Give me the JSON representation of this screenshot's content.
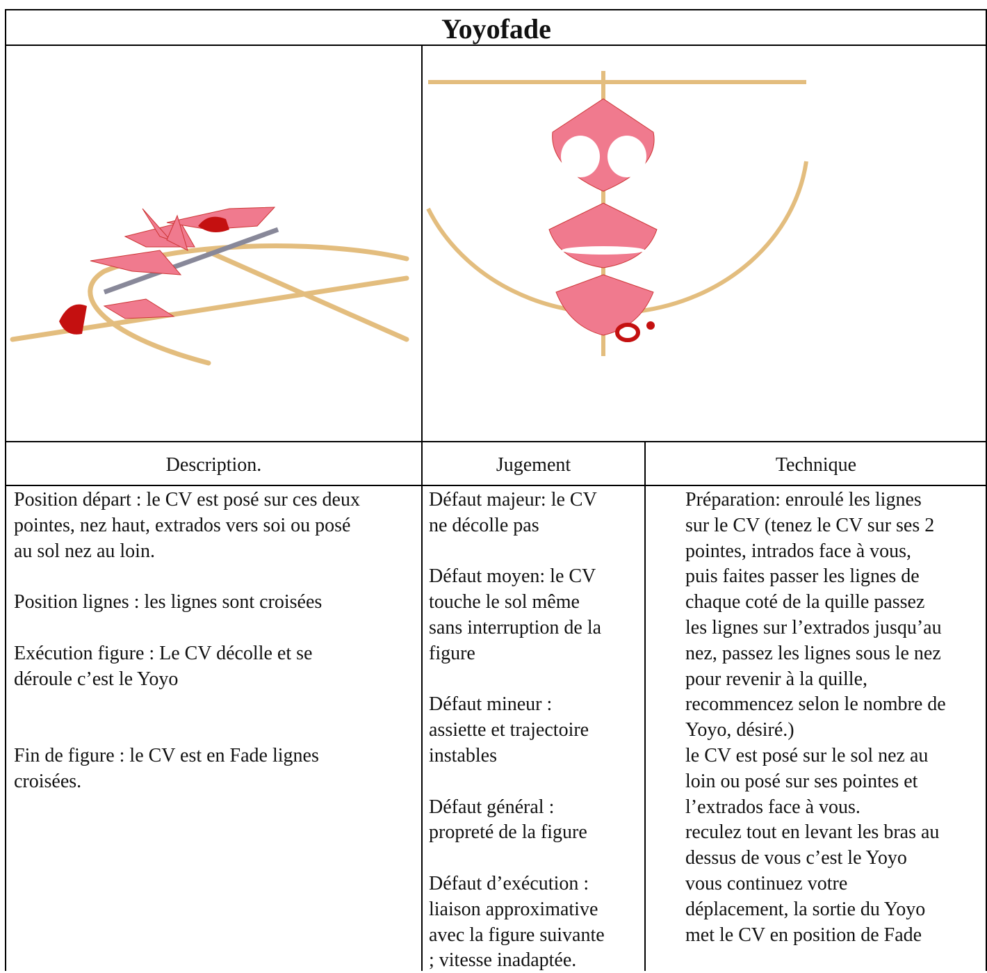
{
  "title": "Yoyofade",
  "headers": [
    "Description.",
    "Jugement",
    "Technique"
  ],
  "columns": [
    {
      "paragraphs": [
        [
          "Position départ : le CV est posé sur ces deux",
          "pointes, nez haut, extrados vers soi ou posé",
          "au sol nez au loin."
        ],
        [
          "Position lignes : les lignes sont croisées"
        ],
        [
          "Exécution figure : Le CV décolle et se",
          "déroule c’est le Yoyo"
        ],
        [
          "Fin de figure : le CV est en Fade lignes",
          "croisées."
        ]
      ]
    },
    {
      "paragraphs": [
        [
          "Défaut majeur: le CV",
          "ne décolle pas"
        ],
        [
          "Défaut moyen: le CV",
          "touche le sol même",
          "sans interruption de la",
          "figure"
        ],
        [
          "Défaut mineur :",
          "assiette et trajectoire",
          "instables"
        ],
        [
          "Défaut général :",
          "propreté de la figure"
        ],
        [
          "Défaut d’exécution :",
          "liaison approximative",
          "avec la figure suivante",
          "; vitesse inadaptée."
        ]
      ]
    },
    {
      "paragraphs": [
        [
          "Préparation: enroulé les lignes",
          "sur le CV (tenez le CV sur ses 2",
          "pointes, intrados face à vous,",
          "puis faites passer les lignes de",
          "chaque coté de la quille passez",
          "les lignes sur l’extrados jusqu’au",
          "nez, passez les lignes sous le nez",
          "pour revenir à la quille,",
          "recommencez selon le nombre de",
          "Yoyo, désiré.)",
          "le CV est posé sur le sol nez au",
          "loin ou posé sur ses pointes et",
          "l’extrados face à vous.",
          "reculez tout en levant les bras au",
          "dessus de vous c’est le Yoyo",
          "vous continuez votre",
          "déplacement, la sortie du Yoyo",
          "met le CV en position de Fade"
        ]
      ]
    }
  ]
}
